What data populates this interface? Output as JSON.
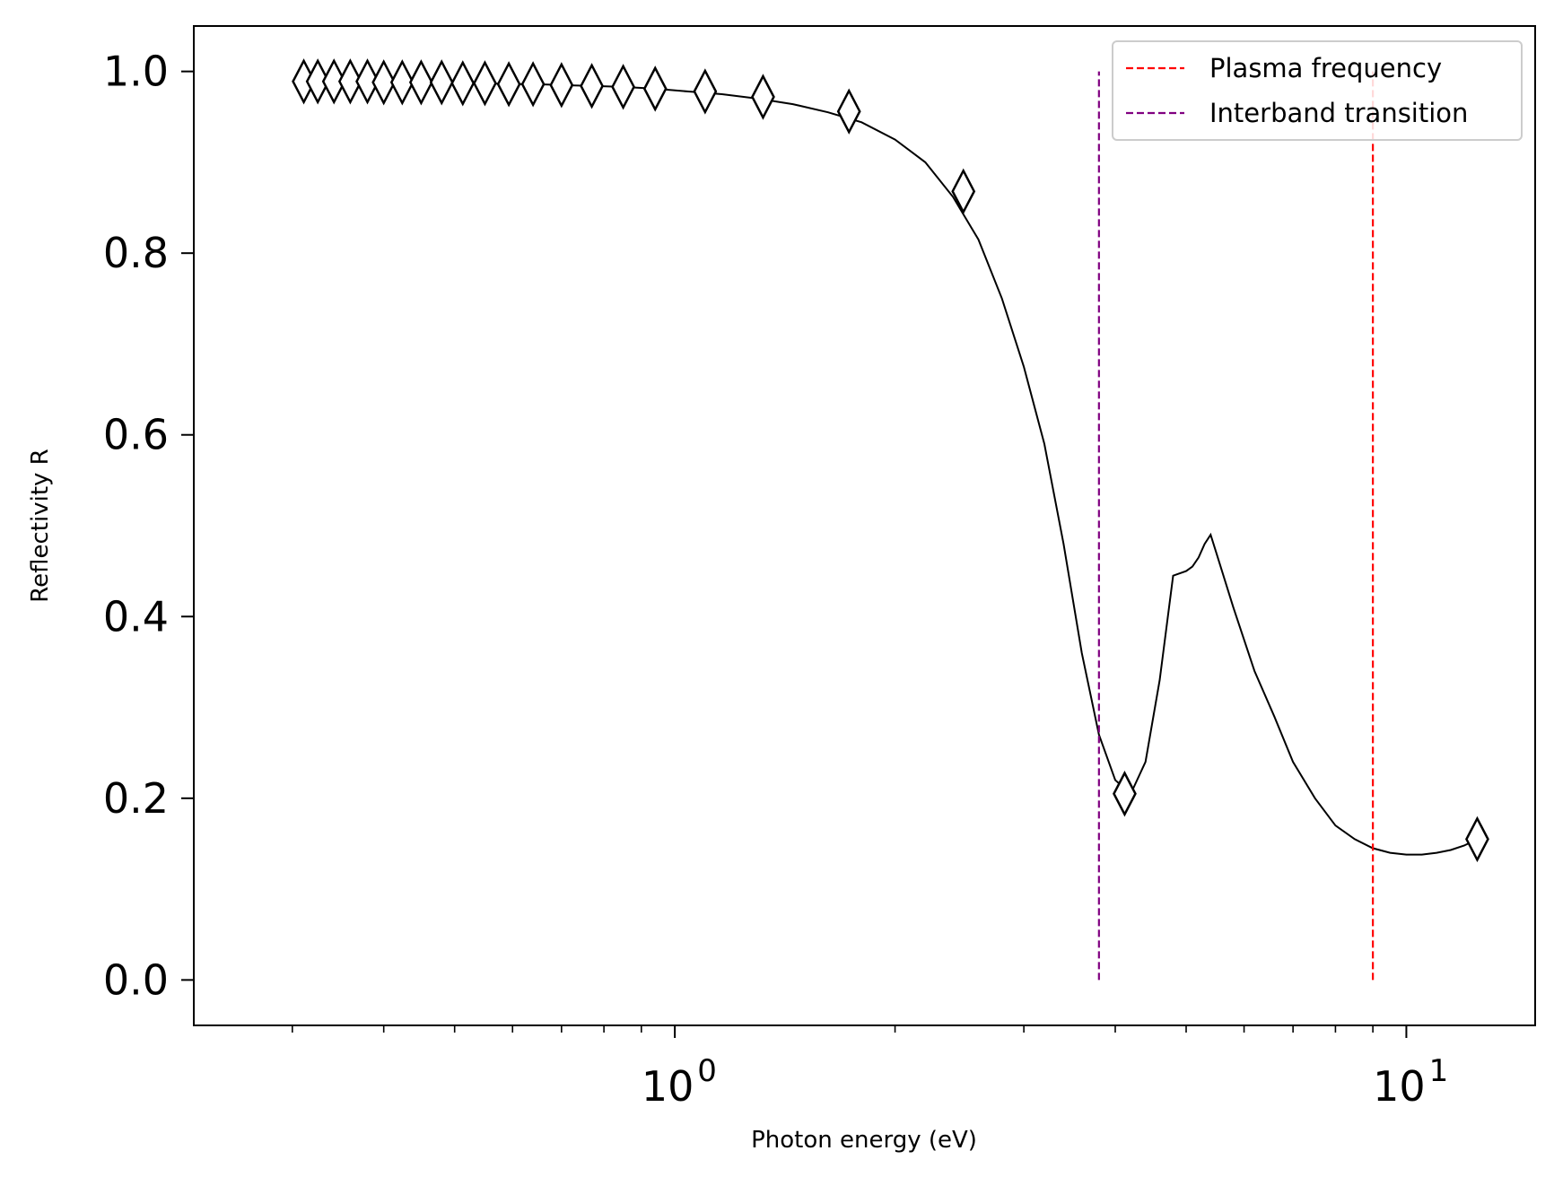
{
  "chart_data": {
    "type": "line",
    "title": "",
    "xlabel": "Photon energy (eV)",
    "ylabel": "Reflectivity R",
    "xscale": "log",
    "xlim": [
      0.22,
      15
    ],
    "ylim": [
      -0.05,
      1.05
    ],
    "x_major_ticks": [
      {
        "value": 1,
        "base": "10",
        "exp": "0"
      },
      {
        "value": 10,
        "base": "10",
        "exp": "1"
      }
    ],
    "x_minor_ticks": [
      0.3,
      0.4,
      0.5,
      0.6,
      0.7,
      0.8,
      0.9,
      2,
      3,
      4,
      5,
      6,
      7,
      8,
      9
    ],
    "y_ticks": [
      {
        "value": 0.0,
        "label": "0.0"
      },
      {
        "value": 0.2,
        "label": "0.2"
      },
      {
        "value": 0.4,
        "label": "0.4"
      },
      {
        "value": 0.6,
        "label": "0.6"
      },
      {
        "value": 0.8,
        "label": "0.8"
      },
      {
        "value": 1.0,
        "label": "1.0"
      }
    ],
    "grid": false,
    "legend_position": "top-right",
    "series": [
      {
        "color": "#000000",
        "style": "solid",
        "marker": "thin-diamond",
        "x": [
          0.3,
          0.311,
          0.325,
          0.342,
          0.36,
          0.38,
          0.4,
          0.424,
          0.45,
          0.48,
          0.513,
          0.55,
          0.593,
          0.64,
          0.7,
          0.77,
          0.85,
          0.94,
          1.04,
          1.16,
          1.3,
          1.45,
          1.62,
          1.8,
          2.0,
          2.2,
          2.4,
          2.6,
          2.8,
          3.0,
          3.2,
          3.4,
          3.6,
          3.8,
          4.0,
          4.2,
          4.4,
          4.6,
          4.8,
          5.0,
          5.1,
          5.2,
          5.3,
          5.4,
          5.5,
          5.8,
          6.2,
          6.6,
          7.0,
          7.5,
          8.0,
          8.5,
          9.0,
          9.5,
          10.0,
          10.5,
          11.0,
          11.5,
          12.0,
          12.5
        ],
        "y": [
          0.989,
          0.989,
          0.989,
          0.989,
          0.989,
          0.989,
          0.988,
          0.988,
          0.988,
          0.988,
          0.987,
          0.987,
          0.986,
          0.986,
          0.985,
          0.984,
          0.983,
          0.981,
          0.978,
          0.975,
          0.97,
          0.964,
          0.955,
          0.944,
          0.925,
          0.9,
          0.862,
          0.815,
          0.75,
          0.675,
          0.59,
          0.48,
          0.36,
          0.27,
          0.22,
          0.205,
          0.24,
          0.33,
          0.445,
          0.45,
          0.455,
          0.465,
          0.48,
          0.49,
          0.47,
          0.41,
          0.34,
          0.29,
          0.24,
          0.2,
          0.17,
          0.155,
          0.145,
          0.14,
          0.138,
          0.138,
          0.14,
          0.143,
          0.148,
          0.155
        ],
        "markers_x": [
          0.311,
          0.325,
          0.342,
          0.36,
          0.38,
          0.4,
          0.424,
          0.45,
          0.48,
          0.513,
          0.55,
          0.593,
          0.64,
          0.7,
          0.77,
          0.85,
          0.94,
          1.1,
          1.32,
          1.73,
          2.48,
          4.12,
          12.5
        ],
        "markers_y": [
          0.989,
          0.989,
          0.989,
          0.989,
          0.989,
          0.988,
          0.988,
          0.988,
          0.988,
          0.987,
          0.987,
          0.986,
          0.986,
          0.985,
          0.984,
          0.983,
          0.981,
          0.978,
          0.972,
          0.956,
          0.868,
          0.205,
          0.155
        ]
      }
    ],
    "vlines": [
      {
        "name": "Plasma frequency",
        "x": 9.0,
        "ymin": 0.0,
        "ymax": 1.0,
        "color": "#ff0000",
        "style": "dashed"
      },
      {
        "name": "Interband transition",
        "x": 3.8,
        "ymin": 0.0,
        "ymax": 1.0,
        "color": "#800080",
        "style": "dashed"
      }
    ],
    "legend": [
      {
        "label": "Plasma frequency",
        "color": "#ff0000",
        "style": "dashed"
      },
      {
        "label": "Interband transition",
        "color": "#800080",
        "style": "dashed"
      }
    ]
  }
}
